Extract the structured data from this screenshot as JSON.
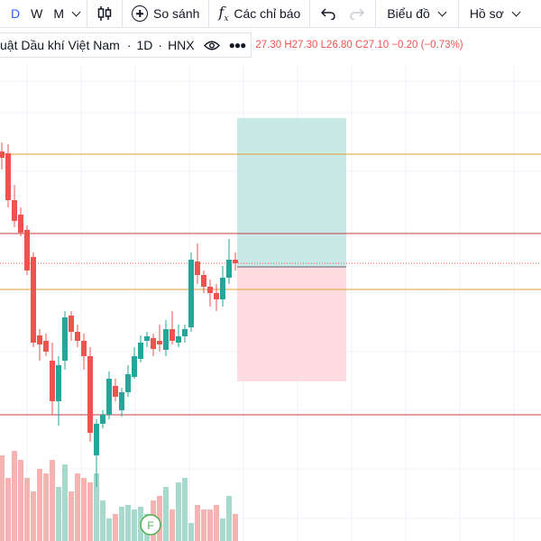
{
  "toolbar": {
    "interval_d": "D",
    "interval_w": "W",
    "interval_m": "M",
    "compare_label": "So sánh",
    "indicators_label": "Các chỉ báo",
    "chart_label": "Biểu đồ",
    "profile_label": "Hồ sơ"
  },
  "legend": {
    "symbol_name": "uật Dầu khí Việt Nam",
    "interval": "1D",
    "exchange": "HNX",
    "open": "27.30",
    "high": "H27.30",
    "low": "L26.80",
    "close": "C27.10",
    "change": "−0.20 (−0.73%)"
  },
  "marker_label": "F",
  "colors": {
    "up": "#26a69a",
    "down": "#ef5350",
    "accent": "#2962ff",
    "profit_zone": "#b2dfdb",
    "loss_zone": "#ffcdd2",
    "resistance_line": "#e0a030",
    "support_line": "#c84040"
  }
}
